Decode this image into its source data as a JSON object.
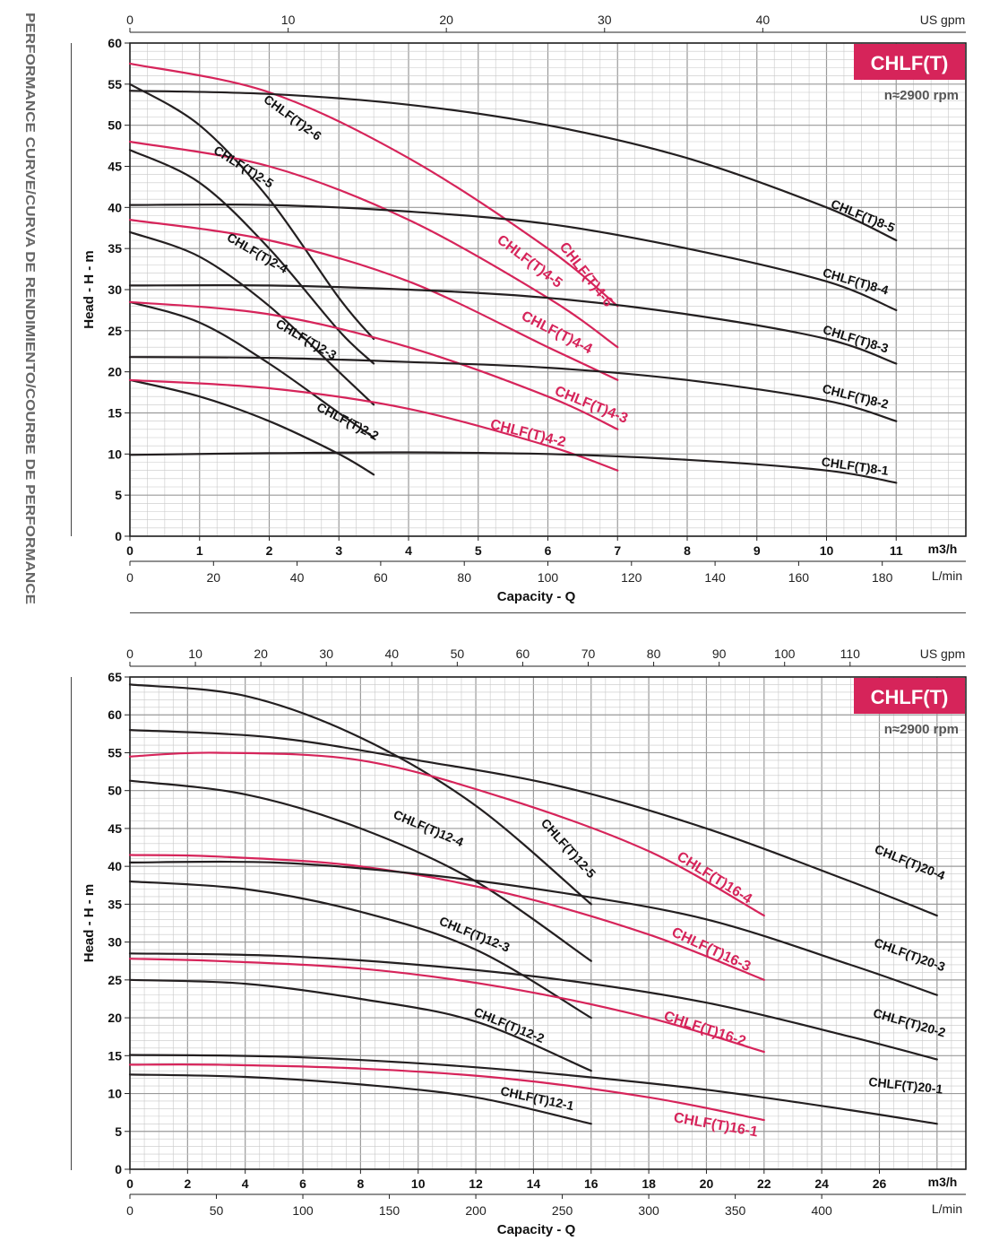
{
  "side_title": "PERFORMANCE CURVE/CURVA DE RENDIMIENTO/COURBE DE PERFORMANCE",
  "colors": {
    "black_curve": "#231f20",
    "pink_curve": "#d6245a",
    "badge_bg": "#d6245a",
    "grid_major": "#9a9a9a",
    "grid_minor": "#c8c8c8"
  },
  "chart_data": [
    {
      "type": "line",
      "badge": "CHLF(T)",
      "speed": "n≈2900 rpm",
      "ylabel": "Head  -  H - m",
      "xlabel": "Capacity - Q",
      "x_unit": "m3/h",
      "x_unit_lmin": "L/min",
      "x_unit_gpm": "US gpm",
      "xlim": [
        0,
        12
      ],
      "ylim": [
        0,
        60
      ],
      "x_ticks": [
        "0",
        "1",
        "2",
        "3",
        "4",
        "5",
        "6",
        "7",
        "8",
        "9",
        "10",
        "11"
      ],
      "y_ticks": [
        "0",
        "5",
        "10",
        "15",
        "20",
        "25",
        "30",
        "35",
        "40",
        "45",
        "50",
        "55",
        "60"
      ],
      "lmin_ticks": [
        [
          "0",
          0
        ],
        [
          "20",
          20
        ],
        [
          "40",
          40
        ],
        [
          "60",
          60
        ],
        [
          "80",
          80
        ],
        [
          "100",
          100
        ],
        [
          "120",
          120
        ],
        [
          "140",
          140
        ],
        [
          "160",
          160
        ],
        [
          "180",
          180
        ]
      ],
      "gpm_ticks": [
        [
          "0",
          0
        ],
        [
          "10",
          10
        ],
        [
          "20",
          20
        ],
        [
          "30",
          30
        ],
        [
          "40",
          40
        ]
      ],
      "grid": true,
      "series": [
        {
          "name": "CHLF(T)2-6",
          "color": "black",
          "x": [
            0,
            1,
            2,
            3,
            3.5
          ],
          "y": [
            55,
            50,
            41,
            29,
            24
          ]
        },
        {
          "name": "CHLF(T)2-5",
          "color": "black",
          "x": [
            0,
            1,
            2,
            3,
            3.5
          ],
          "y": [
            47,
            43,
            35,
            25,
            21
          ]
        },
        {
          "name": "CHLF(T)2-4",
          "color": "black",
          "x": [
            0,
            1,
            2,
            3,
            3.5
          ],
          "y": [
            37,
            34,
            28,
            20,
            16
          ]
        },
        {
          "name": "CHLF(T)2-3",
          "color": "black",
          "x": [
            0,
            1,
            2,
            3,
            3.5
          ],
          "y": [
            28.5,
            26,
            21,
            15,
            12
          ]
        },
        {
          "name": "CHLF(T)2-2",
          "color": "black",
          "x": [
            0,
            1,
            2,
            3,
            3.5
          ],
          "y": [
            19,
            17,
            14,
            10,
            7.5
          ]
        },
        {
          "name": "CHLF(T)4-6",
          "color": "pink",
          "x": [
            0,
            2,
            4,
            6,
            7
          ],
          "y": [
            57.5,
            54,
            46,
            35,
            28
          ]
        },
        {
          "name": "CHLF(T)4-5",
          "color": "pink",
          "x": [
            0,
            2,
            4,
            6,
            7
          ],
          "y": [
            48,
            45,
            38.5,
            29,
            23
          ]
        },
        {
          "name": "CHLF(T)4-4",
          "color": "pink",
          "x": [
            0,
            2,
            4,
            6,
            7
          ],
          "y": [
            38.5,
            36,
            31,
            23,
            19
          ]
        },
        {
          "name": "CHLF(T)4-3",
          "color": "pink",
          "x": [
            0,
            2,
            4,
            6,
            7
          ],
          "y": [
            28.5,
            27,
            23,
            17,
            13
          ]
        },
        {
          "name": "CHLF(T)4-2",
          "color": "pink",
          "x": [
            0,
            2,
            4,
            6,
            7
          ],
          "y": [
            19,
            18,
            15.5,
            11,
            8
          ]
        },
        {
          "name": "CHLF(T)8-5",
          "color": "black",
          "x": [
            0,
            2,
            4,
            6,
            8,
            10,
            11
          ],
          "y": [
            54.2,
            53.8,
            52.5,
            50,
            46,
            40,
            36
          ]
        },
        {
          "name": "CHLF(T)8-4",
          "color": "black",
          "x": [
            0,
            2,
            4,
            6,
            8,
            10,
            11
          ],
          "y": [
            40.3,
            40.3,
            39.5,
            38,
            35,
            31,
            27.5
          ]
        },
        {
          "name": "CHLF(T)8-3",
          "color": "black",
          "x": [
            0,
            2,
            4,
            6,
            8,
            10,
            11
          ],
          "y": [
            30.5,
            30.5,
            30,
            29,
            27,
            24,
            21
          ]
        },
        {
          "name": "CHLF(T)8-2",
          "color": "black",
          "x": [
            0,
            2,
            4,
            6,
            8,
            10,
            11
          ],
          "y": [
            21.8,
            21.7,
            21.2,
            20.5,
            19,
            16.5,
            14
          ]
        },
        {
          "name": "CHLF(T)8-1",
          "color": "black",
          "x": [
            0,
            2,
            4,
            6,
            8,
            10,
            11
          ],
          "y": [
            9.9,
            10.1,
            10.2,
            10,
            9.3,
            8,
            6.5
          ]
        }
      ]
    },
    {
      "type": "line",
      "badge": "CHLF(T)",
      "speed": "n≈2900 rpm",
      "ylabel": "Head  -  H - m",
      "xlabel": "Capacity - Q",
      "x_unit": "m3/h",
      "x_unit_lmin": "L/min",
      "x_unit_gpm": "US gpm",
      "xlim": [
        0,
        29
      ],
      "ylim": [
        0,
        65
      ],
      "x_ticks": [
        "0",
        "2",
        "4",
        "6",
        "8",
        "10",
        "12",
        "14",
        "16",
        "18",
        "20",
        "22",
        "24",
        "26"
      ],
      "y_ticks": [
        "0",
        "5",
        "10",
        "15",
        "20",
        "25",
        "30",
        "35",
        "40",
        "45",
        "50",
        "55",
        "60",
        "65"
      ],
      "lmin_ticks": [
        [
          "0",
          0
        ],
        [
          "50",
          50
        ],
        [
          "100",
          100
        ],
        [
          "150",
          150
        ],
        [
          "200",
          200
        ],
        [
          "250",
          250
        ],
        [
          "300",
          300
        ],
        [
          "350",
          350
        ],
        [
          "400",
          400
        ]
      ],
      "gpm_ticks": [
        [
          "0",
          0
        ],
        [
          "10",
          10
        ],
        [
          "20",
          20
        ],
        [
          "30",
          30
        ],
        [
          "40",
          40
        ],
        [
          "50",
          50
        ],
        [
          "60",
          60
        ],
        [
          "70",
          70
        ],
        [
          "80",
          80
        ],
        [
          "90",
          90
        ],
        [
          "100",
          100
        ],
        [
          "110",
          110
        ]
      ],
      "grid": true,
      "series": [
        {
          "name": "CHLF(T)12-5",
          "color": "black",
          "x": [
            0,
            4,
            8,
            12,
            16
          ],
          "y": [
            64,
            62.5,
            57,
            48,
            35
          ]
        },
        {
          "name": "CHLF(T)12-4",
          "color": "black",
          "x": [
            0,
            4,
            8,
            12,
            16
          ],
          "y": [
            51.3,
            49.5,
            45,
            38,
            27.5
          ]
        },
        {
          "name": "CHLF(T)12-3",
          "color": "black",
          "x": [
            0,
            4,
            8,
            12,
            16
          ],
          "y": [
            38,
            37,
            34,
            29,
            20
          ]
        },
        {
          "name": "CHLF(T)12-2",
          "color": "black",
          "x": [
            0,
            4,
            8,
            12,
            16
          ],
          "y": [
            25,
            24.5,
            22.5,
            19.5,
            13
          ]
        },
        {
          "name": "CHLF(T)12-1",
          "color": "black",
          "x": [
            0,
            4,
            8,
            12,
            16
          ],
          "y": [
            12.5,
            12.2,
            11.2,
            9.5,
            6
          ]
        },
        {
          "name": "CHLF(T)16-4",
          "color": "pink",
          "x": [
            0,
            3,
            8,
            13,
            18,
            22
          ],
          "y": [
            54.5,
            55,
            54,
            49,
            42,
            33.5
          ]
        },
        {
          "name": "CHLF(T)16-3",
          "color": "pink",
          "x": [
            0,
            3,
            8,
            13,
            18,
            22
          ],
          "y": [
            41.5,
            41.3,
            40,
            36.5,
            31,
            25
          ]
        },
        {
          "name": "CHLF(T)16-2",
          "color": "pink",
          "x": [
            0,
            3,
            8,
            13,
            18,
            22
          ],
          "y": [
            27.8,
            27.5,
            26.5,
            24,
            20,
            15.5
          ]
        },
        {
          "name": "CHLF(T)16-1",
          "color": "pink",
          "x": [
            0,
            3,
            8,
            13,
            18,
            22
          ],
          "y": [
            13.8,
            13.8,
            13.3,
            12,
            9.5,
            6.5
          ]
        },
        {
          "name": "CHLF(T)20-4",
          "color": "black",
          "x": [
            0,
            5,
            10,
            15,
            20,
            25,
            28
          ],
          "y": [
            58,
            57,
            54,
            50.5,
            45,
            38,
            33.5
          ]
        },
        {
          "name": "CHLF(T)20-3",
          "color": "black",
          "x": [
            0,
            5,
            10,
            15,
            20,
            25,
            28
          ],
          "y": [
            40.5,
            40.5,
            39,
            36.5,
            33,
            27,
            23
          ]
        },
        {
          "name": "CHLF(T)20-2",
          "color": "black",
          "x": [
            0,
            5,
            10,
            15,
            20,
            25,
            28
          ],
          "y": [
            28.5,
            28.2,
            27,
            25,
            22,
            17.5,
            14.5
          ]
        },
        {
          "name": "CHLF(T)20-1",
          "color": "black",
          "x": [
            0,
            5,
            10,
            15,
            20,
            25,
            28
          ],
          "y": [
            15.1,
            14.9,
            14,
            12.5,
            10.5,
            7.8,
            6
          ]
        }
      ]
    }
  ],
  "curve_labels": [
    [
      {
        "text": "CHLF(T)2-6",
        "color": "black",
        "x": 2.3,
        "y": 50.5,
        "angle": -36
      },
      {
        "text": "CHLF(T)2-5",
        "color": "black",
        "x": 1.6,
        "y": 44.5,
        "angle": -32
      },
      {
        "text": "CHLF(T)2-4",
        "color": "black",
        "x": 1.8,
        "y": 34,
        "angle": -30
      },
      {
        "text": "CHLF(T)2-3",
        "color": "black",
        "x": 2.5,
        "y": 23.5,
        "angle": -30
      },
      {
        "text": "CHLF(T)2-2",
        "color": "black",
        "x": 3.1,
        "y": 13.5,
        "angle": -27
      },
      {
        "text": "CHLF(T)4-6",
        "color": "pink",
        "x": 6.5,
        "y": 31.5,
        "angle": -52
      },
      {
        "text": "CHLF(T)4-5",
        "color": "pink",
        "x": 5.7,
        "y": 33,
        "angle": -37
      },
      {
        "text": "CHLF(T)4-4",
        "color": "pink",
        "x": 6.1,
        "y": 24.3,
        "angle": -27
      },
      {
        "text": "CHLF(T)4-3",
        "color": "pink",
        "x": 6.6,
        "y": 15.5,
        "angle": -22
      },
      {
        "text": "CHLF(T)4-2",
        "color": "pink",
        "x": 5.7,
        "y": 12,
        "angle": -14
      },
      {
        "text": "CHLF(T)8-5",
        "color": "black",
        "x": 10.5,
        "y": 38.5,
        "angle": -22
      },
      {
        "text": "CHLF(T)8-4",
        "color": "black",
        "x": 10.4,
        "y": 30.5,
        "angle": -16
      },
      {
        "text": "CHLF(T)8-3",
        "color": "black",
        "x": 10.4,
        "y": 23.5,
        "angle": -17
      },
      {
        "text": "CHLF(T)8-2",
        "color": "black",
        "x": 10.4,
        "y": 16.5,
        "angle": -14
      },
      {
        "text": "CHLF(T)8-1",
        "color": "black",
        "x": 10.4,
        "y": 8,
        "angle": -8
      }
    ],
    [
      {
        "text": "CHLF(T)12-5",
        "color": "black",
        "x": 15.1,
        "y": 42,
        "angle": -48
      },
      {
        "text": "CHLF(T)12-4",
        "color": "black",
        "x": 10.3,
        "y": 44.5,
        "angle": -23
      },
      {
        "text": "CHLF(T)12-3",
        "color": "black",
        "x": 11.9,
        "y": 30.5,
        "angle": -22
      },
      {
        "text": "CHLF(T)12-2",
        "color": "black",
        "x": 13.1,
        "y": 18.5,
        "angle": -22
      },
      {
        "text": "CHLF(T)12-1",
        "color": "black",
        "x": 14.1,
        "y": 8.8,
        "angle": -12
      },
      {
        "text": "CHLF(T)16-4",
        "color": "pink",
        "x": 20.2,
        "y": 38,
        "angle": -32
      },
      {
        "text": "CHLF(T)16-3",
        "color": "pink",
        "x": 20.1,
        "y": 28.5,
        "angle": -25
      },
      {
        "text": "CHLF(T)16-2",
        "color": "pink",
        "x": 19.9,
        "y": 18,
        "angle": -18
      },
      {
        "text": "CHLF(T)16-1",
        "color": "pink",
        "x": 20.3,
        "y": 5.3,
        "angle": -10
      },
      {
        "text": "CHLF(T)20-4",
        "color": "black",
        "x": 27,
        "y": 40,
        "angle": -22
      },
      {
        "text": "CHLF(T)20-3",
        "color": "black",
        "x": 27,
        "y": 27.8,
        "angle": -20
      },
      {
        "text": "CHLF(T)20-2",
        "color": "black",
        "x": 27,
        "y": 18.8,
        "angle": -16
      },
      {
        "text": "CHLF(T)20-1",
        "color": "black",
        "x": 26.9,
        "y": 10.5,
        "angle": -6
      }
    ]
  ]
}
